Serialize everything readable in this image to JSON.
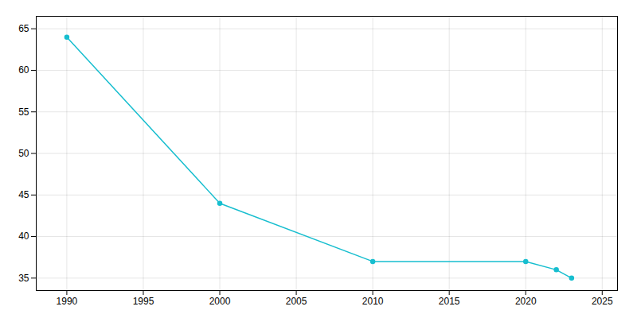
{
  "chart_data": {
    "type": "line",
    "x": [
      1990,
      2000,
      2010,
      2020,
      2022,
      2023
    ],
    "values": [
      64,
      44,
      37,
      37,
      36,
      35
    ],
    "color": "#17becf",
    "marker": "circle",
    "xlim": [
      1988,
      2026
    ],
    "ylim": [
      33.5,
      66.5
    ],
    "xticks": [
      1990,
      1995,
      2000,
      2005,
      2010,
      2015,
      2020,
      2025
    ],
    "yticks": [
      35,
      40,
      45,
      50,
      55,
      60,
      65
    ],
    "grid": true
  }
}
